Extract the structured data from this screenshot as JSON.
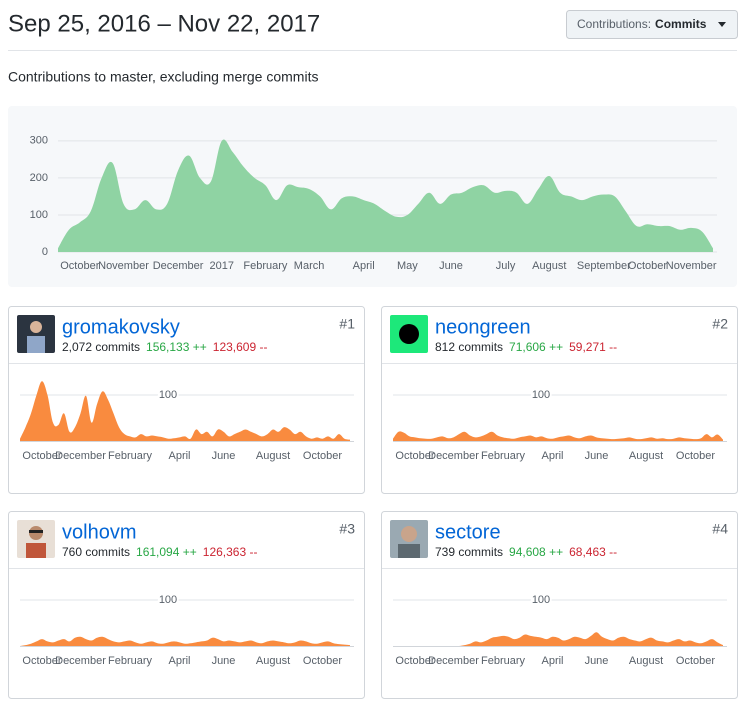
{
  "header": {
    "title": "Sep 25, 2016 – Nov 22, 2017",
    "dropdown_label": "Contributions:",
    "dropdown_value": "Commits"
  },
  "subtitle": "Contributions to master, excluding merge commits",
  "chart_data": {
    "type": "area",
    "color": "#8fd3a3",
    "categories": [
      null,
      null,
      "October",
      null,
      null,
      null,
      "November",
      null,
      null,
      null,
      null,
      "December",
      null,
      null,
      null,
      "2017",
      null,
      null,
      null,
      "February",
      null,
      null,
      null,
      "March",
      null,
      null,
      null,
      null,
      "April",
      null,
      null,
      null,
      "May",
      null,
      null,
      null,
      "June",
      null,
      null,
      null,
      null,
      "July",
      null,
      null,
      null,
      "August",
      null,
      null,
      null,
      null,
      "September",
      null,
      null,
      null,
      "October",
      null,
      null,
      null,
      "November",
      null,
      null
    ],
    "values": [
      10,
      60,
      80,
      110,
      200,
      240,
      130,
      115,
      140,
      115,
      130,
      220,
      260,
      200,
      190,
      300,
      270,
      230,
      200,
      180,
      140,
      180,
      175,
      170,
      150,
      115,
      145,
      150,
      140,
      130,
      110,
      95,
      100,
      130,
      160,
      130,
      155,
      160,
      175,
      180,
      160,
      165,
      160,
      130,
      170,
      205,
      160,
      150,
      140,
      150,
      155,
      150,
      110,
      70,
      75,
      70,
      70,
      60,
      65,
      55,
      10
    ],
    "ylim": [
      0,
      340
    ],
    "yticks": [
      0,
      100,
      200,
      300
    ],
    "grid": true
  },
  "contributors": [
    {
      "name": "gromakovsky",
      "rank": "#1",
      "commits": "2,072 commits",
      "additions": "156,133 ++",
      "deletions": "123,609 --",
      "chart": {
        "type": "area",
        "color": "#f98b3f",
        "ylim": [
          0,
          150
        ],
        "yticks": [
          100
        ],
        "categories": [
          null,
          null,
          null,
          null,
          "October",
          null,
          null,
          null,
          null,
          null,
          null,
          "December",
          null,
          null,
          null,
          null,
          null,
          null,
          null,
          null,
          "February",
          null,
          null,
          null,
          null,
          null,
          null,
          null,
          null,
          "April",
          null,
          null,
          null,
          null,
          null,
          null,
          null,
          "June",
          null,
          null,
          null,
          null,
          null,
          null,
          null,
          null,
          "August",
          null,
          null,
          null,
          null,
          null,
          null,
          null,
          null,
          "October",
          null,
          null,
          null,
          null,
          null
        ],
        "values": [
          5,
          30,
          60,
          100,
          130,
          100,
          40,
          35,
          60,
          20,
          30,
          60,
          98,
          40,
          80,
          108,
          90,
          60,
          30,
          15,
          10,
          8,
          15,
          10,
          12,
          10,
          8,
          5,
          6,
          8,
          10,
          5,
          25,
          15,
          20,
          10,
          25,
          20,
          10,
          15,
          20,
          25,
          20,
          15,
          10,
          15,
          25,
          20,
          30,
          25,
          15,
          20,
          10,
          5,
          8,
          5,
          10,
          5,
          15,
          5,
          3
        ]
      }
    },
    {
      "name": "neongreen",
      "rank": "#2",
      "commits": "812 commits",
      "additions": "71,606 ++",
      "deletions": "59,271 --",
      "chart": {
        "type": "area",
        "color": "#f98b3f",
        "ylim": [
          0,
          150
        ],
        "yticks": [
          100
        ],
        "categories": [
          null,
          null,
          null,
          null,
          "October",
          null,
          null,
          null,
          null,
          null,
          null,
          "December",
          null,
          null,
          null,
          null,
          null,
          null,
          null,
          null,
          "February",
          null,
          null,
          null,
          null,
          null,
          null,
          null,
          null,
          "April",
          null,
          null,
          null,
          null,
          null,
          null,
          null,
          "June",
          null,
          null,
          null,
          null,
          null,
          null,
          null,
          null,
          "August",
          null,
          null,
          null,
          null,
          null,
          null,
          null,
          null,
          "October",
          null,
          null,
          null,
          null,
          null
        ],
        "values": [
          5,
          20,
          18,
          10,
          8,
          6,
          5,
          5,
          8,
          10,
          6,
          8,
          15,
          20,
          12,
          8,
          10,
          15,
          20,
          12,
          8,
          6,
          5,
          8,
          10,
          12,
          8,
          10,
          6,
          5,
          8,
          10,
          12,
          8,
          6,
          10,
          12,
          8,
          6,
          5,
          4,
          5,
          6,
          8,
          5,
          4,
          6,
          8,
          5,
          6,
          4,
          5,
          8,
          6,
          5,
          4,
          6,
          15,
          8,
          14,
          3
        ]
      }
    },
    {
      "name": "volhovm",
      "rank": "#3",
      "commits": "760 commits",
      "additions": "161,094 ++",
      "deletions": "126,363 --",
      "chart": {
        "type": "area",
        "color": "#f98b3f",
        "ylim": [
          0,
          150
        ],
        "yticks": [
          100
        ],
        "categories": [
          null,
          null,
          null,
          null,
          "October",
          null,
          null,
          null,
          null,
          null,
          null,
          "December",
          null,
          null,
          null,
          null,
          null,
          null,
          null,
          null,
          "February",
          null,
          null,
          null,
          null,
          null,
          null,
          null,
          null,
          "April",
          null,
          null,
          null,
          null,
          null,
          null,
          null,
          "June",
          null,
          null,
          null,
          null,
          null,
          null,
          null,
          null,
          "August",
          null,
          null,
          null,
          null,
          null,
          null,
          null,
          null,
          "October",
          null,
          null,
          null,
          null,
          null
        ],
        "values": [
          0,
          2,
          5,
          10,
          15,
          10,
          8,
          12,
          15,
          10,
          18,
          20,
          15,
          12,
          18,
          20,
          15,
          10,
          8,
          10,
          12,
          8,
          5,
          8,
          10,
          6,
          5,
          8,
          10,
          8,
          5,
          6,
          8,
          10,
          12,
          18,
          15,
          10,
          12,
          10,
          8,
          10,
          12,
          8,
          6,
          10,
          12,
          10,
          8,
          6,
          8,
          12,
          10,
          6,
          5,
          8,
          10,
          6,
          4,
          3,
          2
        ]
      }
    },
    {
      "name": "sectore",
      "rank": "#4",
      "commits": "739 commits",
      "additions": "94,608 ++",
      "deletions": "68,463 --",
      "chart": {
        "type": "area",
        "color": "#f98b3f",
        "ylim": [
          0,
          150
        ],
        "yticks": [
          100
        ],
        "categories": [
          null,
          null,
          null,
          null,
          "October",
          null,
          null,
          null,
          null,
          null,
          null,
          "December",
          null,
          null,
          null,
          null,
          null,
          null,
          null,
          null,
          "February",
          null,
          null,
          null,
          null,
          null,
          null,
          null,
          null,
          "April",
          null,
          null,
          null,
          null,
          null,
          null,
          null,
          "June",
          null,
          null,
          null,
          null,
          null,
          null,
          null,
          null,
          "August",
          null,
          null,
          null,
          null,
          null,
          null,
          null,
          null,
          "October",
          null,
          null,
          null,
          null,
          null
        ],
        "values": [
          0,
          0,
          0,
          0,
          0,
          0,
          0,
          0,
          0,
          0,
          0,
          0,
          0,
          2,
          5,
          10,
          8,
          12,
          18,
          20,
          22,
          20,
          15,
          18,
          25,
          22,
          20,
          18,
          15,
          20,
          18,
          12,
          15,
          20,
          18,
          15,
          22,
          30,
          20,
          15,
          12,
          18,
          20,
          15,
          12,
          10,
          15,
          18,
          12,
          10,
          8,
          12,
          15,
          10,
          12,
          8,
          6,
          10,
          15,
          8,
          2
        ]
      }
    }
  ]
}
